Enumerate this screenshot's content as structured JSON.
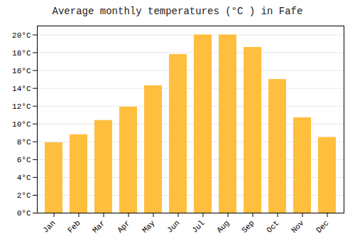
{
  "chart_data": {
    "type": "bar",
    "title": "Average monthly temperatures (°C ) in Fafe",
    "categories": [
      "Jan",
      "Feb",
      "Mar",
      "Apr",
      "May",
      "Jun",
      "Jul",
      "Aug",
      "Sep",
      "Oct",
      "Nov",
      "Dec"
    ],
    "values": [
      7.9,
      8.8,
      10.4,
      11.9,
      14.3,
      17.8,
      20.0,
      20.0,
      18.6,
      15.0,
      10.7,
      8.5
    ],
    "color": "#FFBE3D",
    "ylim": [
      0,
      21
    ],
    "yticks": [
      {
        "value": 0,
        "label": "0°C"
      },
      {
        "value": 2,
        "label": "2°C"
      },
      {
        "value": 4,
        "label": "4°C"
      },
      {
        "value": 6,
        "label": "6°C"
      },
      {
        "value": 8,
        "label": "8°C"
      },
      {
        "value": 10,
        "label": "10°C"
      },
      {
        "value": 12,
        "label": "12°C"
      },
      {
        "value": 14,
        "label": "14°C"
      },
      {
        "value": 16,
        "label": "16°C"
      },
      {
        "value": 18,
        "label": "18°C"
      },
      {
        "value": 20,
        "label": "20°C"
      }
    ],
    "grid": true
  }
}
